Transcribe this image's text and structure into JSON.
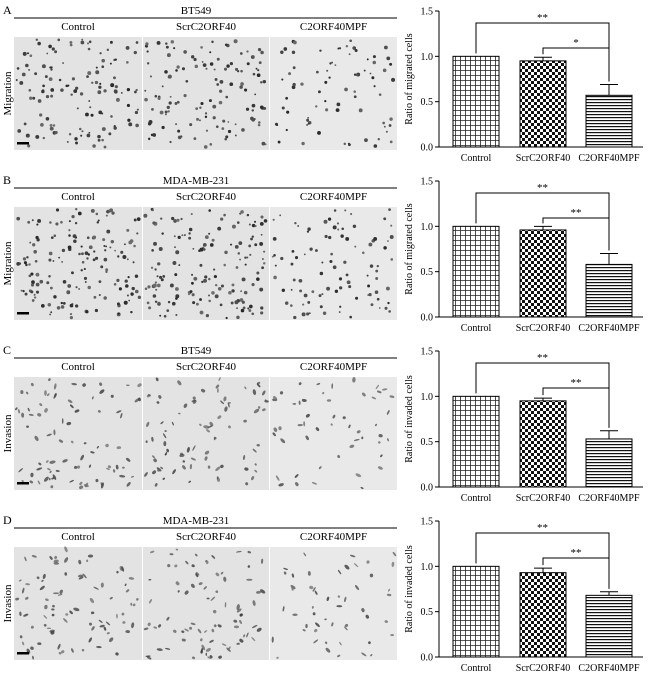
{
  "panels": [
    {
      "letter": "A",
      "cell_line": "BT549",
      "assay": "Migration",
      "conditions": [
        "Control",
        "ScrC2ORF40",
        "C2ORF40MPF"
      ]
    },
    {
      "letter": "B",
      "cell_line": "MDA-MB-231",
      "assay": "Migration",
      "conditions": [
        "Control",
        "ScrC2ORF40",
        "C2ORF40MPF"
      ]
    },
    {
      "letter": "C",
      "cell_line": "BT549",
      "assay": "Invasion",
      "conditions": [
        "Control",
        "ScrC2ORF40",
        "C2ORF40MPF"
      ]
    },
    {
      "letter": "D",
      "cell_line": "MDA-MB-231",
      "assay": "Invasion",
      "conditions": [
        "Control",
        "ScrC2ORF40",
        "C2ORF40MPF"
      ]
    }
  ],
  "chart_data": [
    {
      "type": "bar",
      "categories": [
        "Control",
        "ScrC2ORF40",
        "C2ORF40MPF"
      ],
      "values": [
        1.0,
        0.95,
        0.57
      ],
      "errors": [
        0.0,
        0.04,
        0.12
      ],
      "ylabel": "Ratio of migrated cells",
      "ylim": [
        0,
        1.5
      ],
      "yticks": [
        "0.0",
        "0.5",
        "1.0",
        "1.5"
      ],
      "significance": [
        {
          "from": 0,
          "to": 2,
          "label": "**"
        },
        {
          "from": 1,
          "to": 2,
          "label": "*"
        }
      ]
    },
    {
      "type": "bar",
      "categories": [
        "Control",
        "ScrC2ORF40",
        "C2ORF40MPF"
      ],
      "values": [
        1.0,
        0.96,
        0.58
      ],
      "errors": [
        0.0,
        0.04,
        0.12
      ],
      "ylabel": "Ratio of migrated cells",
      "ylim": [
        0,
        1.5
      ],
      "yticks": [
        "0.0",
        "0.5",
        "1.0",
        "1.5"
      ],
      "significance": [
        {
          "from": 0,
          "to": 2,
          "label": "**"
        },
        {
          "from": 1,
          "to": 2,
          "label": "**"
        }
      ]
    },
    {
      "type": "bar",
      "categories": [
        "Control",
        "ScrC2ORF40",
        "C2ORF40MPF"
      ],
      "values": [
        1.0,
        0.95,
        0.53
      ],
      "errors": [
        0.0,
        0.03,
        0.09
      ],
      "ylabel": "Ratio of invaded cells",
      "ylim": [
        0,
        1.5
      ],
      "yticks": [
        "0.0",
        "0.5",
        "1.0",
        "1.5"
      ],
      "significance": [
        {
          "from": 0,
          "to": 2,
          "label": "**"
        },
        {
          "from": 1,
          "to": 2,
          "label": "**"
        }
      ]
    },
    {
      "type": "bar",
      "categories": [
        "Control",
        "ScrC2ORF40",
        "C2ORF40MPF"
      ],
      "values": [
        1.0,
        0.93,
        0.68
      ],
      "errors": [
        0.0,
        0.05,
        0.04
      ],
      "ylabel": "Ratio of invaded cells",
      "ylim": [
        0,
        1.5
      ],
      "yticks": [
        "0.0",
        "0.5",
        "1.0",
        "1.5"
      ],
      "significance": [
        {
          "from": 0,
          "to": 2,
          "label": "**"
        },
        {
          "from": 1,
          "to": 2,
          "label": "**"
        }
      ]
    }
  ]
}
